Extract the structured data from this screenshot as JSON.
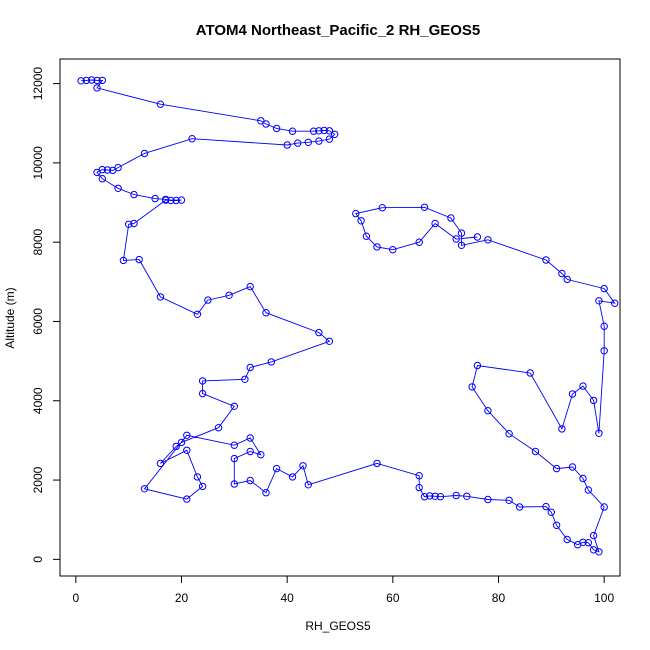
{
  "chart_data": {
    "type": "line",
    "title": "ATOM4 Northeast_Pacific_2 RH_GEOS5",
    "xlabel": "RH_GEOS5",
    "ylabel": "Altitude (m)",
    "xlim": [
      -3,
      103
    ],
    "ylim": [
      -420,
      12620
    ],
    "xticks": [
      "0",
      "20",
      "40",
      "60",
      "80",
      "100"
    ],
    "yticks": [
      "0",
      "2000",
      "4000",
      "6000",
      "8000",
      "10000",
      "12000"
    ],
    "xtick_values": [
      0,
      20,
      40,
      60,
      80,
      100
    ],
    "ytick_values": [
      0,
      2000,
      4000,
      6000,
      8000,
      10000,
      12000
    ],
    "series": [
      {
        "color": "#0000ff",
        "marker": "circle-open",
        "points": [
          [
            1,
            12070
          ],
          [
            2,
            12080
          ],
          [
            3,
            12090
          ],
          [
            4,
            12080
          ],
          [
            5,
            12080
          ],
          [
            4,
            11890
          ],
          [
            16,
            11480
          ],
          [
            35,
            11060
          ],
          [
            36,
            10980
          ],
          [
            38,
            10870
          ],
          [
            41,
            10800
          ],
          [
            45,
            10800
          ],
          [
            46,
            10810
          ],
          [
            47,
            10820
          ],
          [
            48,
            10810
          ],
          [
            49,
            10720
          ],
          [
            48,
            10600
          ],
          [
            46,
            10550
          ],
          [
            44,
            10520
          ],
          [
            42,
            10500
          ],
          [
            40,
            10450
          ],
          [
            22,
            10610
          ],
          [
            13,
            10240
          ],
          [
            8,
            9880
          ],
          [
            7,
            9810
          ],
          [
            6,
            9820
          ],
          [
            5,
            9830
          ],
          [
            4,
            9760
          ],
          [
            5,
            9600
          ],
          [
            8,
            9360
          ],
          [
            11,
            9200
          ],
          [
            15,
            9100
          ],
          [
            17,
            9080
          ],
          [
            18,
            9050
          ],
          [
            19,
            9050
          ],
          [
            20,
            9060
          ],
          [
            17,
            9060
          ],
          [
            11,
            8470
          ],
          [
            10,
            8450
          ],
          [
            9,
            7540
          ],
          [
            12,
            7560
          ],
          [
            16,
            6620
          ],
          [
            23,
            6180
          ],
          [
            25,
            6540
          ],
          [
            29,
            6660
          ],
          [
            33,
            6880
          ],
          [
            36,
            6220
          ],
          [
            46,
            5720
          ],
          [
            48,
            5500
          ],
          [
            37,
            4980
          ],
          [
            33,
            4840
          ],
          [
            32,
            4540
          ],
          [
            24,
            4500
          ],
          [
            24,
            4180
          ],
          [
            30,
            3860
          ],
          [
            27,
            3320
          ],
          [
            20,
            2950
          ],
          [
            19,
            2850
          ],
          [
            16,
            2420
          ],
          [
            21,
            2750
          ],
          [
            23,
            2080
          ],
          [
            24,
            1840
          ],
          [
            21,
            1520
          ],
          [
            13,
            1780
          ],
          [
            21,
            3130
          ],
          [
            30,
            2880
          ],
          [
            33,
            3060
          ],
          [
            35,
            2640
          ],
          [
            33,
            2720
          ],
          [
            30,
            2540
          ],
          [
            30,
            1900
          ],
          [
            33,
            1990
          ],
          [
            36,
            1680
          ],
          [
            38,
            2290
          ],
          [
            41,
            2080
          ],
          [
            43,
            2360
          ],
          [
            44,
            1880
          ],
          [
            57,
            2420
          ],
          [
            65,
            2110
          ],
          [
            65,
            1810
          ],
          [
            66,
            1580
          ],
          [
            67,
            1600
          ],
          [
            68,
            1590
          ],
          [
            69,
            1580
          ],
          [
            72,
            1610
          ],
          [
            74,
            1590
          ],
          [
            78,
            1510
          ],
          [
            82,
            1490
          ],
          [
            84,
            1320
          ],
          [
            89,
            1330
          ],
          [
            90,
            1190
          ],
          [
            91,
            860
          ],
          [
            93,
            500
          ],
          [
            95,
            370
          ],
          [
            96,
            430
          ],
          [
            97,
            420
          ],
          [
            98,
            240
          ],
          [
            99,
            190
          ],
          [
            98,
            600
          ],
          [
            100,
            1320
          ],
          [
            97,
            1750
          ],
          [
            96,
            2040
          ],
          [
            94,
            2330
          ],
          [
            91,
            2290
          ],
          [
            87,
            2720
          ],
          [
            82,
            3170
          ],
          [
            78,
            3750
          ],
          [
            75,
            4350
          ],
          [
            76,
            4890
          ],
          [
            86,
            4700
          ],
          [
            92,
            3290
          ],
          [
            94,
            4170
          ],
          [
            96,
            4370
          ],
          [
            98,
            4010
          ],
          [
            99,
            3180
          ],
          [
            100,
            5260
          ],
          [
            100,
            5880
          ],
          [
            99,
            6520
          ],
          [
            102,
            6460
          ],
          [
            100,
            6830
          ],
          [
            93,
            7060
          ],
          [
            92,
            7210
          ],
          [
            89,
            7550
          ],
          [
            78,
            8060
          ],
          [
            73,
            7920
          ],
          [
            73,
            8230
          ],
          [
            71,
            8610
          ],
          [
            66,
            8880
          ],
          [
            58,
            8870
          ],
          [
            53,
            8720
          ],
          [
            54,
            8540
          ],
          [
            55,
            8150
          ],
          [
            57,
            7880
          ],
          [
            60,
            7810
          ],
          [
            65,
            8000
          ],
          [
            68,
            8470
          ],
          [
            72,
            8080
          ],
          [
            76,
            8130
          ]
        ]
      }
    ],
    "grid": false,
    "legend": "none"
  }
}
